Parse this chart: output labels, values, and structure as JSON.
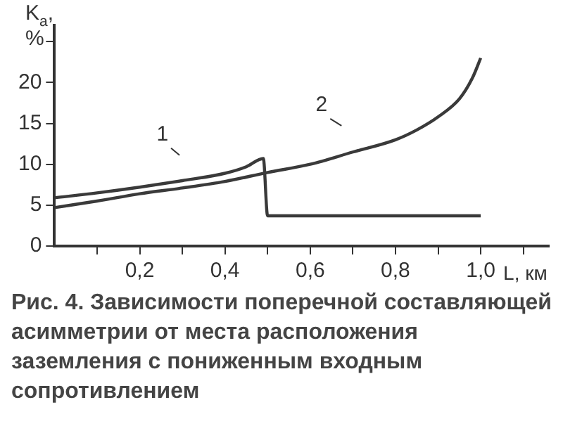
{
  "chart_data": {
    "type": "line",
    "title": "Рис. 4. Зависимости поперечной составляющей асимметрии от места расположения заземления с пониженным входным сопротивлением",
    "xlabel": "L, км",
    "ylabel": "K$_{a}$, %",
    "series": [
      {
        "name": "1",
        "color": "#3a3a3a",
        "x": [
          0,
          0.1,
          0.2,
          0.3,
          0.4,
          0.45,
          0.49,
          0.5,
          0.6,
          0.8,
          1.0
        ],
        "values": [
          5.9,
          6.5,
          7.2,
          8.0,
          8.9,
          9.7,
          10.7,
          3.7,
          3.7,
          3.7,
          3.7
        ]
      },
      {
        "name": "2",
        "color": "#3a3a3a",
        "x": [
          0,
          0.1,
          0.2,
          0.3,
          0.4,
          0.5,
          0.6,
          0.7,
          0.8,
          0.85,
          0.9,
          0.95,
          0.98,
          1.0
        ],
        "values": [
          4.7,
          5.5,
          6.4,
          7.1,
          7.9,
          9.0,
          10.0,
          11.5,
          13.0,
          14.2,
          15.8,
          18.0,
          20.5,
          23.0
        ]
      }
    ],
    "xlim": [
      0,
      1.16
    ],
    "xticks": [
      {
        "value": 0.1,
        "label": null
      },
      {
        "value": 0.2,
        "label": "0,2"
      },
      {
        "value": 0.3,
        "label": null
      },
      {
        "value": 0.4,
        "label": "0,4"
      },
      {
        "value": 0.5,
        "label": null
      },
      {
        "value": 0.6,
        "label": "0,6"
      },
      {
        "value": 0.7,
        "label": null
      },
      {
        "value": 0.8,
        "label": "0,8"
      },
      {
        "value": 0.9,
        "label": null
      },
      {
        "value": 1.0,
        "label": "1,0"
      },
      {
        "value": 1.1,
        "label": null
      }
    ],
    "ylim": [
      0,
      27
    ],
    "yticks": [
      0,
      5,
      10,
      15,
      20,
      {
        "value": 25,
        "label": null
      }
    ],
    "grid": false,
    "legend": false,
    "marker": "none",
    "line_style": "solid"
  }
}
